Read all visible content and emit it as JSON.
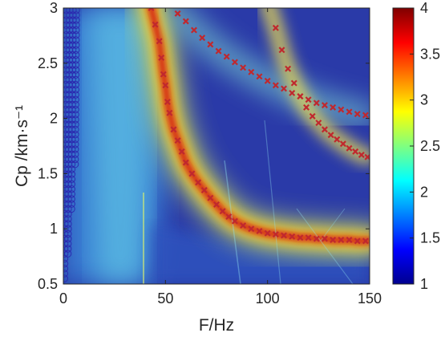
{
  "chart_data": {
    "type": "heatmap",
    "title": "",
    "xlabel": "F/Hz",
    "ylabel": "Cp /km·s⁻¹",
    "xlim": [
      0,
      150
    ],
    "ylim": [
      0.5,
      3
    ],
    "xticks": [
      0,
      50,
      100,
      150
    ],
    "yticks": [
      0.5,
      1,
      1.5,
      2,
      2.5,
      3
    ],
    "colorbar": {
      "range": [
        1,
        4
      ],
      "ticks": [
        1,
        1.5,
        2,
        2.5,
        3,
        3.5,
        4
      ],
      "colormap": "jet"
    },
    "grid": false,
    "marker_series": [
      {
        "marker": "circle",
        "color": "#2b2bb0",
        "description_points": [
          [
            0,
            0.55
          ],
          [
            0.5,
            0.8
          ],
          [
            1,
            1.1
          ],
          [
            2,
            1.5
          ],
          [
            3,
            2.0
          ],
          [
            4,
            2.5
          ],
          [
            5,
            3.0
          ]
        ]
      },
      {
        "marker": "x",
        "color": "#c0282e",
        "points": [
          [
            43,
            3.0
          ],
          [
            45,
            2.85
          ],
          [
            47,
            2.7
          ],
          [
            48,
            2.55
          ],
          [
            49,
            2.4
          ],
          [
            50,
            2.3
          ],
          [
            51,
            2.15
          ],
          [
            52,
            2.05
          ],
          [
            54,
            1.9
          ],
          [
            56,
            1.8
          ],
          [
            58,
            1.7
          ],
          [
            60,
            1.6
          ],
          [
            63,
            1.5
          ],
          [
            66,
            1.42
          ],
          [
            69,
            1.35
          ],
          [
            72,
            1.28
          ],
          [
            75,
            1.22
          ],
          [
            78,
            1.16
          ],
          [
            81,
            1.11
          ],
          [
            84,
            1.07
          ],
          [
            88,
            1.03
          ],
          [
            92,
            1.0
          ],
          [
            96,
            0.98
          ],
          [
            100,
            0.96
          ],
          [
            104,
            0.95
          ],
          [
            108,
            0.94
          ],
          [
            112,
            0.93
          ],
          [
            116,
            0.92
          ],
          [
            120,
            0.92
          ],
          [
            124,
            0.91
          ],
          [
            128,
            0.91
          ],
          [
            132,
            0.9
          ],
          [
            136,
            0.9
          ],
          [
            140,
            0.9
          ],
          [
            144,
            0.89
          ],
          [
            148,
            0.89
          ]
        ]
      },
      {
        "marker": "x",
        "color": "#c0282e",
        "points": [
          [
            56,
            2.95
          ],
          [
            60,
            2.88
          ],
          [
            64,
            2.8
          ],
          [
            68,
            2.73
          ],
          [
            72,
            2.67
          ],
          [
            76,
            2.61
          ],
          [
            80,
            2.56
          ],
          [
            84,
            2.51
          ],
          [
            88,
            2.46
          ],
          [
            92,
            2.42
          ],
          [
            96,
            2.38
          ],
          [
            100,
            2.34
          ],
          [
            104,
            2.3
          ],
          [
            108,
            2.27
          ],
          [
            112,
            2.23
          ],
          [
            116,
            2.2
          ],
          [
            120,
            2.17
          ],
          [
            124,
            2.14
          ],
          [
            128,
            2.12
          ],
          [
            132,
            2.1
          ],
          [
            136,
            2.08
          ],
          [
            140,
            2.06
          ],
          [
            144,
            2.04
          ],
          [
            148,
            2.03
          ]
        ]
      },
      {
        "marker": "x",
        "color": "#c0282e",
        "points": [
          [
            104,
            2.82
          ],
          [
            107,
            2.62
          ],
          [
            110,
            2.45
          ],
          [
            113,
            2.32
          ],
          [
            116,
            2.2
          ],
          [
            119,
            2.1
          ],
          [
            122,
            2.02
          ],
          [
            125,
            1.96
          ],
          [
            128,
            1.9
          ],
          [
            131,
            1.85
          ],
          [
            134,
            1.81
          ],
          [
            137,
            1.77
          ],
          [
            140,
            1.73
          ],
          [
            143,
            1.7
          ],
          [
            146,
            1.67
          ],
          [
            149,
            1.65
          ]
        ]
      }
    ]
  }
}
